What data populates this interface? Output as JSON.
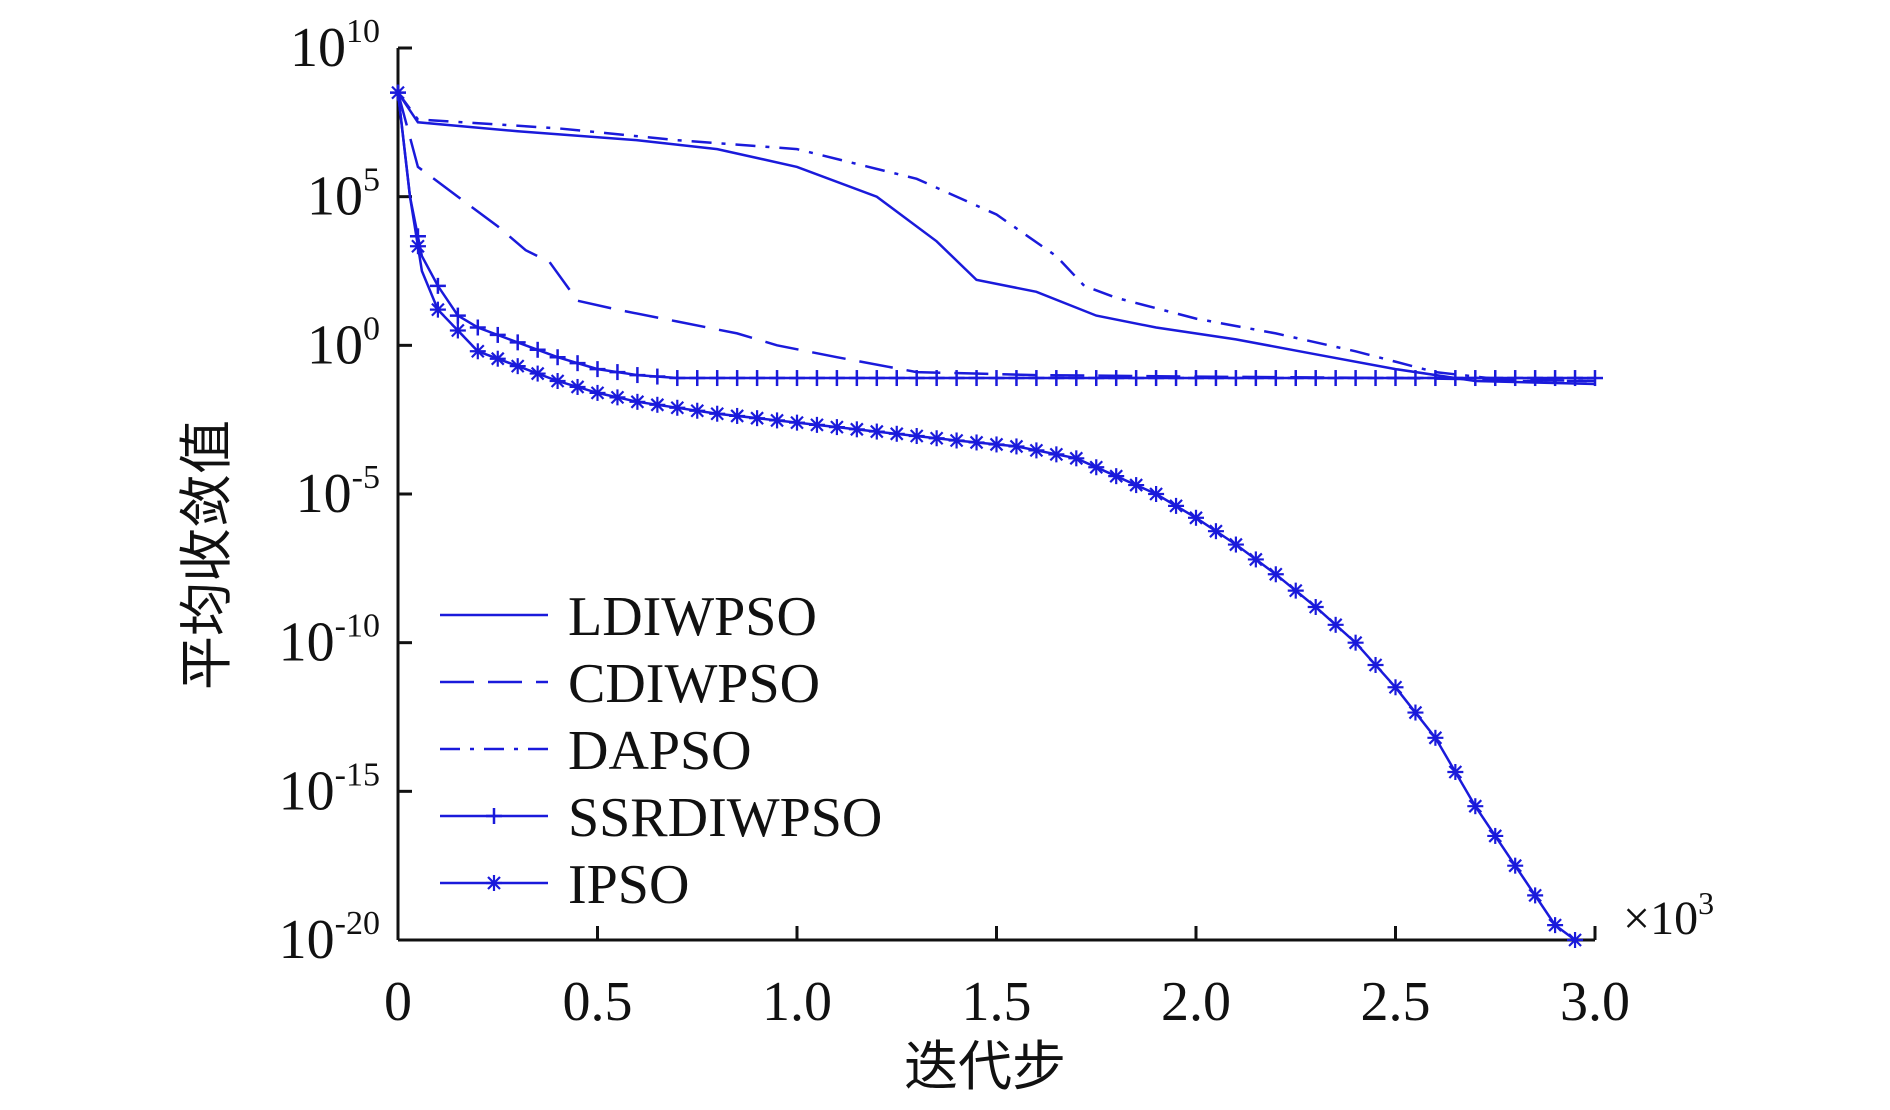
{
  "chart_data": {
    "type": "line",
    "title": "",
    "xlabel": "迭代步",
    "ylabel": "平均收敛值",
    "x_multiplier": {
      "base": "×10",
      "exp": "3"
    },
    "xlim": [
      0,
      3.0
    ],
    "ylim_log10": [
      -20,
      10
    ],
    "yscale": "log",
    "x_ticks": [
      0,
      0.5,
      1.0,
      1.5,
      2.0,
      2.5,
      3.0
    ],
    "x_tick_labels": [
      "0",
      "0.5",
      "1.0",
      "1.5",
      "2.0",
      "2.5",
      "3.0"
    ],
    "y_ticks_log10": [
      10,
      5,
      0,
      -5,
      -10,
      -15,
      -20
    ],
    "y_tick_labels": [
      {
        "base": "10",
        "exp": "10"
      },
      {
        "base": "10",
        "exp": "5"
      },
      {
        "base": "10",
        "exp": "0"
      },
      {
        "base": "10",
        "exp": "-5"
      },
      {
        "base": "10",
        "exp": "-10"
      },
      {
        "base": "10",
        "exp": "-15"
      },
      {
        "base": "10",
        "exp": "-20"
      }
    ],
    "line_color": "#1a1adb",
    "legend_position": "bottom-left",
    "series": [
      {
        "name": "LDIWPSO",
        "style": "solid",
        "marker": "none",
        "points": [
          [
            0,
            8.5
          ],
          [
            0.05,
            7.5
          ],
          [
            0.3,
            7.2
          ],
          [
            0.6,
            6.9
          ],
          [
            0.8,
            6.6
          ],
          [
            1.0,
            6.0
          ],
          [
            1.2,
            5.0
          ],
          [
            1.35,
            3.5
          ],
          [
            1.45,
            2.2
          ],
          [
            1.6,
            1.8
          ],
          [
            1.75,
            1.0
          ],
          [
            1.9,
            0.6
          ],
          [
            2.1,
            0.2
          ],
          [
            2.3,
            -0.3
          ],
          [
            2.5,
            -0.8
          ],
          [
            2.7,
            -1.2
          ],
          [
            3.0,
            -1.3
          ]
        ]
      },
      {
        "name": "CDIWPSO",
        "style": "dashed",
        "marker": "none",
        "points": [
          [
            0,
            8.5
          ],
          [
            0.05,
            6.0
          ],
          [
            0.15,
            5.0
          ],
          [
            0.25,
            4.0
          ],
          [
            0.32,
            3.2
          ],
          [
            0.38,
            2.8
          ],
          [
            0.45,
            1.5
          ],
          [
            0.55,
            1.2
          ],
          [
            0.7,
            0.8
          ],
          [
            0.85,
            0.4
          ],
          [
            0.95,
            0.0
          ],
          [
            1.1,
            -0.4
          ],
          [
            1.3,
            -0.9
          ],
          [
            1.6,
            -1.0
          ],
          [
            2.0,
            -1.05
          ],
          [
            2.5,
            -1.1
          ],
          [
            3.0,
            -1.2
          ]
        ]
      },
      {
        "name": "DAPSO",
        "style": "dashdot",
        "marker": "none",
        "points": [
          [
            0,
            8.5
          ],
          [
            0.05,
            7.6
          ],
          [
            0.4,
            7.3
          ],
          [
            0.7,
            6.9
          ],
          [
            1.0,
            6.6
          ],
          [
            1.3,
            5.6
          ],
          [
            1.5,
            4.4
          ],
          [
            1.65,
            3.0
          ],
          [
            1.72,
            2.0
          ],
          [
            1.8,
            1.6
          ],
          [
            2.0,
            0.9
          ],
          [
            2.2,
            0.4
          ],
          [
            2.4,
            -0.2
          ],
          [
            2.6,
            -0.9
          ],
          [
            2.8,
            -1.2
          ],
          [
            3.0,
            -1.2
          ]
        ]
      },
      {
        "name": "SSRDIWPSO",
        "style": "solid",
        "marker": "plus",
        "points": [
          [
            0,
            8.5
          ],
          [
            0.03,
            5.0
          ],
          [
            0.06,
            3.0
          ],
          [
            0.1,
            2.0
          ],
          [
            0.15,
            1.0
          ],
          [
            0.2,
            0.6
          ],
          [
            0.3,
            0.1
          ],
          [
            0.4,
            -0.4
          ],
          [
            0.5,
            -0.8
          ],
          [
            0.6,
            -1.0
          ],
          [
            0.7,
            -1.1
          ],
          [
            1.0,
            -1.1
          ],
          [
            1.5,
            -1.1
          ],
          [
            2.0,
            -1.1
          ],
          [
            2.5,
            -1.1
          ],
          [
            3.0,
            -1.1
          ]
        ]
      },
      {
        "name": "IPSO",
        "style": "solid",
        "marker": "star",
        "points": [
          [
            0,
            8.5
          ],
          [
            0.03,
            5.0
          ],
          [
            0.06,
            2.5
          ],
          [
            0.1,
            1.2
          ],
          [
            0.15,
            0.5
          ],
          [
            0.2,
            -0.2
          ],
          [
            0.3,
            -0.7
          ],
          [
            0.4,
            -1.2
          ],
          [
            0.5,
            -1.6
          ],
          [
            0.6,
            -1.9
          ],
          [
            0.8,
            -2.3
          ],
          [
            1.0,
            -2.6
          ],
          [
            1.2,
            -2.9
          ],
          [
            1.4,
            -3.2
          ],
          [
            1.55,
            -3.4
          ],
          [
            1.7,
            -3.8
          ],
          [
            1.8,
            -4.4
          ],
          [
            1.9,
            -5.0
          ],
          [
            2.0,
            -5.8
          ],
          [
            2.1,
            -6.7
          ],
          [
            2.2,
            -7.7
          ],
          [
            2.3,
            -8.8
          ],
          [
            2.4,
            -10.0
          ],
          [
            2.5,
            -11.5
          ],
          [
            2.6,
            -13.2
          ],
          [
            2.7,
            -15.5
          ],
          [
            2.8,
            -17.5
          ],
          [
            2.9,
            -19.5
          ],
          [
            2.95,
            -20.0
          ]
        ]
      }
    ]
  }
}
